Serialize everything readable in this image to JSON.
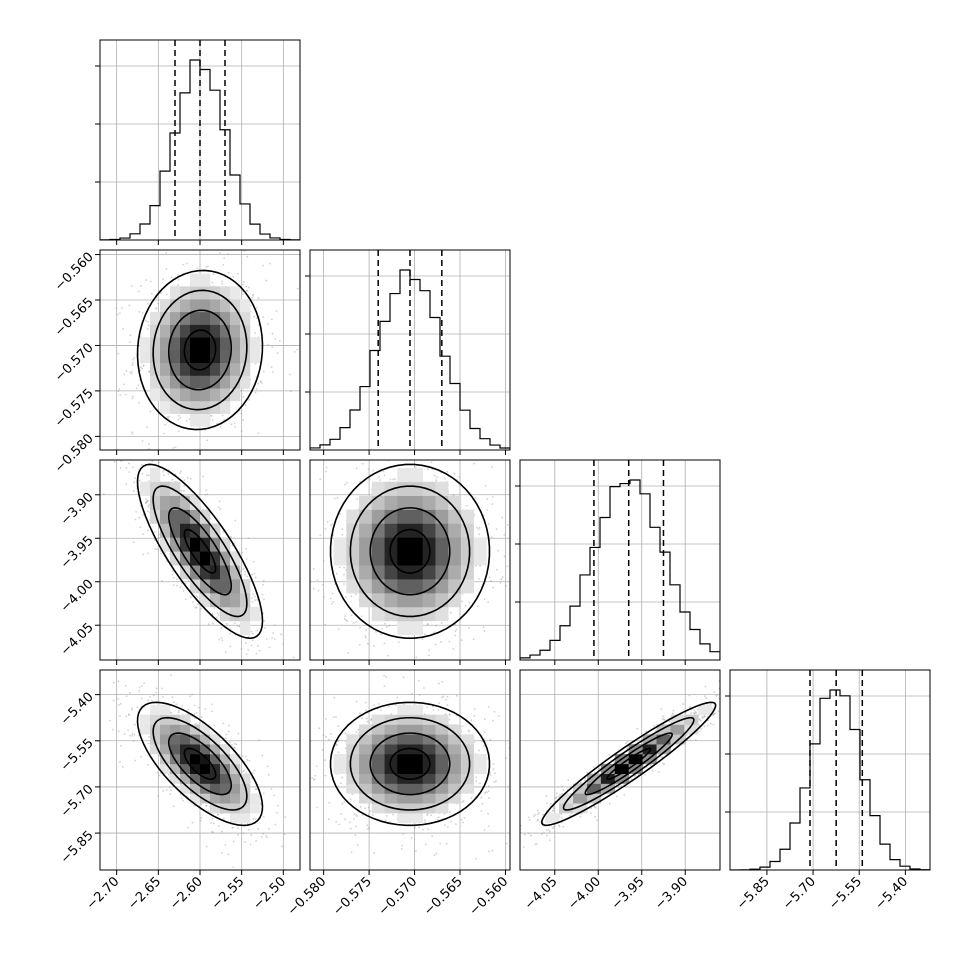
{
  "chart_data": {
    "type": "corner",
    "grid": true,
    "params": [
      {
        "id": "p0",
        "range": [
          -2.72,
          -2.48
        ],
        "mean": -2.6,
        "sigma": 0.03,
        "quantiles": [
          -2.63,
          -2.6,
          -2.57
        ],
        "ticks": [
          -2.7,
          -2.65,
          -2.6,
          -2.55,
          -2.5
        ],
        "tick_labels": [
          "−2.70",
          "−2.65",
          "−2.60",
          "−2.55",
          "−2.50"
        ]
      },
      {
        "id": "p1",
        "range": [
          -0.5815,
          -0.5595
        ],
        "mean": -0.5705,
        "sigma": 0.0035,
        "quantiles": [
          -0.574,
          -0.5705,
          -0.567
        ],
        "ticks": [
          -0.58,
          -0.575,
          -0.57,
          -0.565,
          -0.56
        ],
        "tick_labels": [
          "−0.580",
          "−0.575",
          "−0.570",
          "−0.565",
          "−0.560"
        ]
      },
      {
        "id": "p2",
        "range": [
          -4.09,
          -3.86
        ],
        "mean": -3.965,
        "sigma": 0.04,
        "quantiles": [
          -4.005,
          -3.965,
          -3.925
        ],
        "ticks": [
          -4.05,
          -4.0,
          -3.95,
          -3.9
        ],
        "tick_labels": [
          "−4.05",
          "−4.00",
          "−3.95",
          "−3.90"
        ]
      },
      {
        "id": "p3",
        "range": [
          -5.97,
          -5.32
        ],
        "mean": -5.625,
        "sigma": 0.08,
        "quantiles": [
          -5.71,
          -5.625,
          -5.54
        ],
        "ticks": [
          -5.85,
          -5.7,
          -5.55,
          -5.4
        ],
        "tick_labels": [
          "−5.85",
          "−5.70",
          "−5.55",
          "−5.40"
        ]
      }
    ],
    "correlations": [
      {
        "i": 1,
        "j": 0,
        "rho": 0.05
      },
      {
        "i": 2,
        "j": 0,
        "rho": -0.8
      },
      {
        "i": 2,
        "j": 1,
        "rho": 0.0
      },
      {
        "i": 3,
        "j": 0,
        "rho": -0.7
      },
      {
        "i": 3,
        "j": 1,
        "rho": 0.0
      },
      {
        "i": 3,
        "j": 2,
        "rho": 0.95
      }
    ]
  }
}
